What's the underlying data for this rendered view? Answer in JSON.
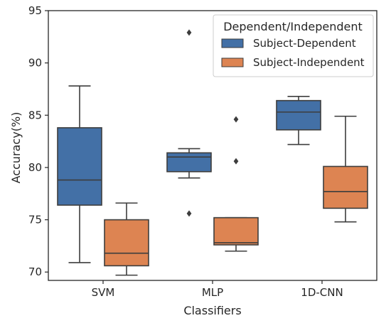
{
  "chart_data": {
    "type": "box",
    "xlabel": "Classifiers",
    "ylabel": "Accuracy(%)",
    "ylim": [
      69.2,
      95
    ],
    "yticks": [
      70,
      75,
      80,
      85,
      90,
      95
    ],
    "categories": [
      "SVM",
      "MLP",
      "1D-CNN"
    ],
    "legend": {
      "title": "Dependent/Independent",
      "placement": "top-right"
    },
    "series": [
      {
        "name": "Subject-Dependent",
        "color": "#4370A6",
        "boxes": [
          {
            "category": "SVM",
            "whislo": 70.9,
            "q1": 76.4,
            "med": 78.8,
            "q3": 83.8,
            "whishi": 87.8,
            "fliers": []
          },
          {
            "category": "MLP",
            "whislo": 79.0,
            "q1": 79.6,
            "med": 81.0,
            "q3": 81.4,
            "whishi": 81.8,
            "fliers": [
              92.9,
              75.6
            ]
          },
          {
            "category": "1D-CNN",
            "whislo": 82.2,
            "q1": 83.6,
            "med": 85.3,
            "q3": 86.4,
            "whishi": 86.8,
            "fliers": []
          }
        ]
      },
      {
        "name": "Subject-Independent",
        "color": "#DD8452",
        "boxes": [
          {
            "category": "SVM",
            "whislo": 69.7,
            "q1": 70.6,
            "med": 71.8,
            "q3": 75.0,
            "whishi": 76.6,
            "fliers": []
          },
          {
            "category": "MLP",
            "whislo": 72.0,
            "q1": 72.6,
            "med": 72.8,
            "q3": 75.2,
            "whishi": 75.2,
            "fliers": [
              84.6,
              80.6
            ]
          },
          {
            "category": "1D-CNN",
            "whislo": 74.8,
            "q1": 76.1,
            "med": 77.7,
            "q3": 80.1,
            "whishi": 84.9,
            "fliers": []
          }
        ]
      }
    ]
  }
}
